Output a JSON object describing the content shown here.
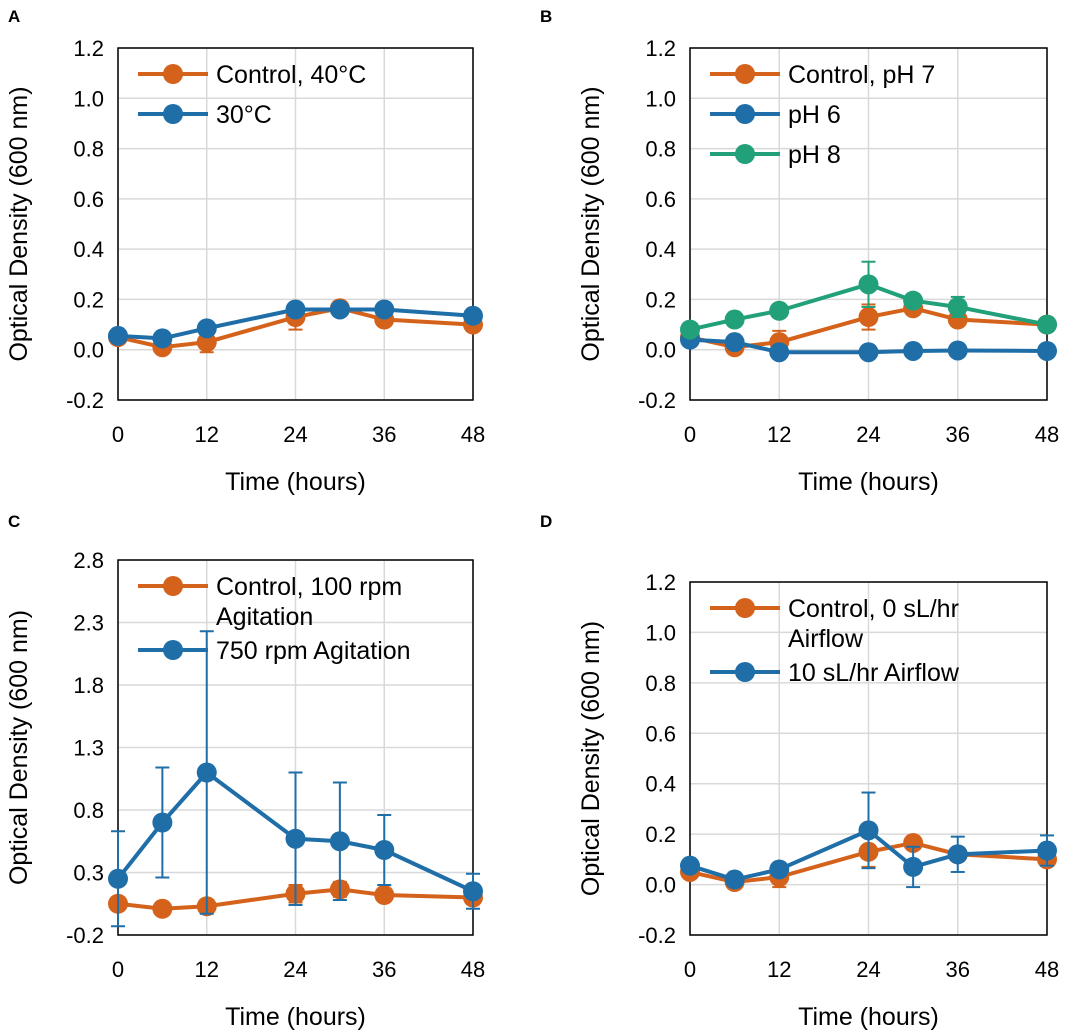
{
  "colors": {
    "orange": "#D5621B",
    "blue": "#1F6EA8",
    "green": "#21A07A",
    "grid": "#D9D9D9",
    "axis": "#000000"
  },
  "chart_data": [
    {
      "panel": "A",
      "type": "line",
      "xlabel": "Time (hours)",
      "ylabel": "Optical Density (600 nm)",
      "xlim": [
        0,
        48
      ],
      "xticks": [
        0,
        12,
        24,
        36,
        48
      ],
      "ylim": [
        -0.2,
        1.2
      ],
      "yticks": [
        -0.2,
        0.0,
        0.2,
        0.4,
        0.6,
        0.8,
        1.0,
        1.2
      ],
      "ytick_labels": [
        "-0.2",
        "0.0",
        "0.2",
        "0.4",
        "0.6",
        "0.8",
        "1.0",
        "1.2"
      ],
      "x": [
        0,
        6,
        12,
        24,
        30,
        36,
        48
      ],
      "legend": "top-left",
      "series": [
        {
          "name": "Control, 40°C",
          "color": "orange",
          "values": [
            0.05,
            0.01,
            0.03,
            0.13,
            0.165,
            0.12,
            0.1
          ],
          "errors": [
            0.0,
            0.0,
            0.04,
            0.05,
            0.02,
            0.0,
            0.0
          ]
        },
        {
          "name": "30°C",
          "color": "blue",
          "values": [
            0.055,
            0.045,
            0.085,
            0.16,
            0.16,
            0.16,
            0.135
          ],
          "errors": [
            0.0,
            0.0,
            0.0,
            0.0,
            0.0,
            0.0,
            0.0
          ]
        }
      ]
    },
    {
      "panel": "B",
      "type": "line",
      "xlabel": "Time (hours)",
      "ylabel": "Optical Density (600 nm)",
      "xlim": [
        0,
        48
      ],
      "xticks": [
        0,
        12,
        24,
        36,
        48
      ],
      "ylim": [
        -0.2,
        1.2
      ],
      "yticks": [
        -0.2,
        0.0,
        0.2,
        0.4,
        0.6,
        0.8,
        1.0,
        1.2
      ],
      "ytick_labels": [
        "-0.2",
        "0.0",
        "0.2",
        "0.4",
        "0.6",
        "0.8",
        "1.0",
        "1.2"
      ],
      "x": [
        0,
        6,
        12,
        24,
        30,
        36,
        48
      ],
      "legend": "top-left",
      "series": [
        {
          "name": "Control, pH 7",
          "color": "orange",
          "values": [
            0.05,
            0.01,
            0.03,
            0.13,
            0.165,
            0.12,
            0.1
          ],
          "errors": [
            0.0,
            0.0,
            0.045,
            0.05,
            0.02,
            0.0,
            0.0
          ]
        },
        {
          "name": "pH 6",
          "color": "blue",
          "values": [
            0.04,
            0.03,
            -0.01,
            -0.01,
            -0.005,
            -0.003,
            -0.005
          ],
          "errors": [
            0.0,
            0.0,
            0.0,
            0.0,
            0.0,
            0.0,
            0.0
          ]
        },
        {
          "name": "pH 8",
          "color": "green",
          "values": [
            0.08,
            0.12,
            0.155,
            0.26,
            0.195,
            0.17,
            0.1
          ],
          "errors": [
            0.0,
            0.0,
            0.0,
            0.09,
            0.02,
            0.04,
            0.0
          ]
        }
      ]
    },
    {
      "panel": "C",
      "type": "line",
      "xlabel": "Time (hours)",
      "ylabel": "Optical Density (600 nm)",
      "xlim": [
        0,
        48
      ],
      "xticks": [
        0,
        12,
        24,
        36,
        48
      ],
      "ylim": [
        -0.2,
        2.8
      ],
      "yticks": [
        -0.2,
        0.3,
        0.8,
        1.3,
        1.8,
        2.3,
        2.8
      ],
      "ytick_labels": [
        "-0.2",
        "0.3",
        "0.8",
        "1.3",
        "1.8",
        "2.3",
        "2.8"
      ],
      "x": [
        0,
        6,
        12,
        24,
        30,
        36,
        48
      ],
      "legend": "top-left",
      "series": [
        {
          "name": "Control, 100 rpm Agitation",
          "color": "orange",
          "values": [
            0.05,
            0.01,
            0.03,
            0.13,
            0.165,
            0.12,
            0.1
          ],
          "errors": [
            0.0,
            0.0,
            0.0,
            0.07,
            0.06,
            0.05,
            0.0
          ]
        },
        {
          "name": "750 rpm Agitation",
          "color": "blue",
          "values": [
            0.25,
            0.7,
            1.1,
            0.57,
            0.55,
            0.48,
            0.15
          ],
          "errors": [
            0.38,
            0.44,
            1.13,
            0.53,
            0.47,
            0.28,
            0.14
          ]
        }
      ]
    },
    {
      "panel": "D",
      "type": "line",
      "xlabel": "Time (hours)",
      "ylabel": "Optical Density (600 nm)",
      "xlim": [
        0,
        48
      ],
      "xticks": [
        0,
        12,
        24,
        36,
        48
      ],
      "ylim": [
        -0.2,
        1.2
      ],
      "yticks": [
        -0.2,
        0.0,
        0.2,
        0.4,
        0.6,
        0.8,
        1.0,
        1.2
      ],
      "ytick_labels": [
        "-0.2",
        "0.0",
        "0.2",
        "0.4",
        "0.6",
        "0.8",
        "1.0",
        "1.2"
      ],
      "x": [
        0,
        6,
        12,
        24,
        30,
        36,
        48
      ],
      "legend": "top-left",
      "series": [
        {
          "name": "Control, 0 sL/hr Airflow",
          "color": "orange",
          "values": [
            0.05,
            0.01,
            0.03,
            0.13,
            0.165,
            0.12,
            0.1
          ],
          "errors": [
            0.0,
            0.0,
            0.04,
            0.06,
            0.0,
            0.0,
            0.0
          ]
        },
        {
          "name": "10 sL/hr Airflow",
          "color": "blue",
          "values": [
            0.075,
            0.02,
            0.06,
            0.215,
            0.07,
            0.12,
            0.135
          ],
          "errors": [
            0.0,
            0.0,
            0.0,
            0.15,
            0.08,
            0.07,
            0.06
          ]
        }
      ]
    }
  ]
}
